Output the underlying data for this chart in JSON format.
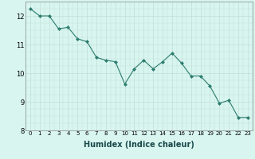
{
  "x": [
    0,
    1,
    2,
    3,
    4,
    5,
    6,
    7,
    8,
    9,
    10,
    11,
    12,
    13,
    14,
    15,
    16,
    17,
    18,
    19,
    20,
    21,
    22,
    23
  ],
  "y": [
    12.25,
    12.0,
    12.0,
    11.55,
    11.6,
    11.2,
    11.1,
    10.55,
    10.45,
    10.4,
    9.62,
    10.15,
    10.45,
    10.15,
    10.4,
    10.7,
    10.35,
    9.9,
    9.9,
    9.55,
    8.95,
    9.05,
    8.45,
    8.45
  ],
  "xlabel": "Humidex (Indice chaleur)",
  "ylim": [
    8,
    12.5
  ],
  "xlim_min": -0.5,
  "xlim_max": 23.5,
  "yticks": [
    8,
    9,
    10,
    11,
    12
  ],
  "xticks": [
    0,
    1,
    2,
    3,
    4,
    5,
    6,
    7,
    8,
    9,
    10,
    11,
    12,
    13,
    14,
    15,
    16,
    17,
    18,
    19,
    20,
    21,
    22,
    23
  ],
  "line_color": "#2d7d6e",
  "marker_color": "#2d7d6e",
  "bg_color": "#d8f5f0",
  "grid_color_major": "#c0ddd8",
  "grid_color_minor": "#c0ddd8",
  "axes_bg": "#d8f5f0",
  "xlabel_fontsize": 7,
  "ytick_fontsize": 6,
  "xtick_fontsize": 5
}
